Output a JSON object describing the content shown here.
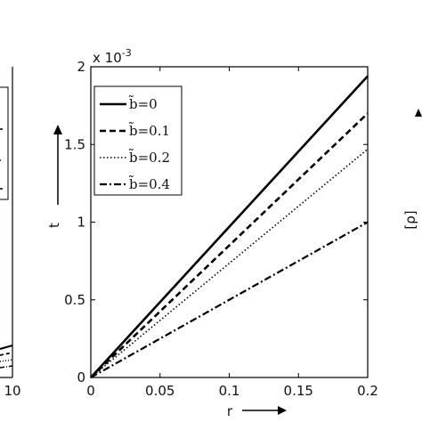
{
  "chart_data": {
    "type": "line",
    "xlabel": "r",
    "ylabel": "t",
    "xlim": [
      0,
      0.2
    ],
    "ylim": [
      0,
      0.002
    ],
    "x_ticks": [
      "0",
      "0.05",
      "0.1",
      "0.15",
      "0.2"
    ],
    "x_tick_values": [
      0,
      0.05,
      0.1,
      0.15,
      0.2
    ],
    "y_ticks": [
      "0",
      "0.5",
      "1",
      "1.5",
      "2"
    ],
    "y_tick_values": [
      0,
      0.0005,
      0.001,
      0.0015,
      0.002
    ],
    "y_multiplier": "x 10",
    "y_multiplier_exp": "-3",
    "legend_position": "top-left",
    "grid": false,
    "series": [
      {
        "name": "b̃=0",
        "dash": "solid",
        "x": [
          0,
          0.2
        ],
        "y": [
          0,
          0.00194
        ]
      },
      {
        "name": "b̃=0.1",
        "dash": "dashed",
        "x": [
          0,
          0.2
        ],
        "y": [
          0,
          0.0017
        ]
      },
      {
        "name": "b̃=0.2",
        "dash": "dotted",
        "x": [
          0,
          0.2
        ],
        "y": [
          0,
          0.00147
        ]
      },
      {
        "name": "b̃=0.4",
        "dash": "dashdot",
        "x": [
          0,
          0.2
        ],
        "y": [
          0,
          0.001
        ]
      }
    ]
  },
  "left_panel": {
    "x_tick_last": "10"
  },
  "right_panel": {
    "ylabel": "[ρ]"
  }
}
